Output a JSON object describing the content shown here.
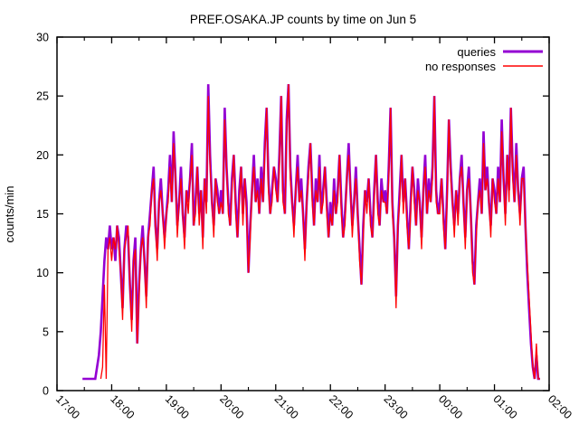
{
  "page": {
    "background_color": "#ffffff",
    "text_color": "#000000",
    "axis_color": "#000000"
  },
  "chart_data": {
    "type": "line",
    "title": "PREF.OSAKA.JP counts by time on Jun 5",
    "xlabel": "",
    "ylabel": "counts/min",
    "ylim": [
      0,
      30
    ],
    "y_tick_step": 5,
    "y_tick_labels": [
      "0",
      "5",
      "10",
      "15",
      "20",
      "25",
      "30"
    ],
    "x_tick_labels": [
      "17:00",
      "18:00",
      "19:00",
      "20:00",
      "21:00",
      "22:00",
      "23:00",
      "00:00",
      "01:00",
      "02:00"
    ],
    "x_minor_tick_every_minutes": 30,
    "x_tick_rotation_deg": 45,
    "grid": false,
    "legend_position": "top-right-inside",
    "x_start_time": "17:28",
    "x_step_minutes": 2,
    "series": [
      {
        "name": "queries",
        "color": "#9400d3",
        "line_width": 2.6,
        "values": [
          1,
          1,
          1,
          1,
          1,
          1,
          1,
          1,
          2,
          3,
          5,
          8,
          11,
          13,
          12,
          14,
          12,
          13,
          11,
          14,
          13,
          10,
          7,
          12,
          14,
          13,
          9,
          6,
          11,
          13,
          4,
          9,
          12,
          14,
          11,
          8,
          13,
          15,
          17,
          19,
          14,
          12,
          16,
          18,
          15,
          13,
          15,
          17,
          20,
          16,
          22,
          18,
          14,
          16,
          19,
          15,
          13,
          17,
          16,
          18,
          21,
          14,
          16,
          19,
          15,
          17,
          13,
          18,
          16,
          26,
          20,
          16,
          14,
          18,
          17,
          15,
          17,
          15,
          24,
          19,
          16,
          14,
          18,
          20,
          16,
          13,
          17,
          19,
          15,
          18,
          16,
          10,
          14,
          17,
          20,
          16,
          18,
          15,
          19,
          16,
          21,
          24,
          18,
          15,
          17,
          19,
          18,
          16,
          20,
          25,
          17,
          15,
          23,
          26,
          19,
          16,
          14,
          17,
          20,
          16,
          18,
          15,
          12,
          16,
          19,
          21,
          17,
          14,
          18,
          16,
          20,
          15,
          17,
          19,
          16,
          13,
          16,
          14,
          18,
          15,
          17,
          20,
          16,
          13,
          15,
          18,
          21,
          17,
          14,
          16,
          19,
          15,
          12,
          9,
          14,
          17,
          16,
          18,
          15,
          13,
          17,
          20,
          16,
          14,
          18,
          16,
          17,
          15,
          19,
          24,
          16,
          13,
          8,
          14,
          17,
          20,
          16,
          18,
          15,
          12,
          16,
          19,
          17,
          14,
          18,
          16,
          13,
          17,
          20,
          15,
          18,
          16,
          19,
          25,
          17,
          15,
          16,
          18,
          15,
          12,
          17,
          23,
          19,
          16,
          14,
          17,
          15,
          18,
          20,
          16,
          13,
          17,
          19,
          15,
          11,
          9,
          14,
          16,
          18,
          15,
          22,
          17,
          19,
          16,
          14,
          18,
          17,
          15,
          19,
          16,
          23,
          18,
          15,
          20,
          17,
          24,
          19,
          16,
          21,
          17,
          15,
          18,
          19,
          14,
          10,
          7,
          4,
          2,
          1,
          3,
          1,
          1
        ]
      },
      {
        "name": "no responses",
        "color": "#ff0000",
        "line_width": 1.3,
        "values": [
          null,
          null,
          null,
          null,
          null,
          null,
          null,
          null,
          null,
          null,
          1,
          2,
          9,
          1,
          12,
          13,
          11,
          13,
          12,
          14,
          12,
          10,
          6,
          12,
          13,
          14,
          9,
          5,
          11,
          12,
          4,
          8,
          12,
          13,
          11,
          7,
          13,
          14,
          17,
          18,
          14,
          11,
          16,
          17,
          15,
          12,
          15,
          16,
          19,
          16,
          21,
          18,
          13,
          16,
          18,
          15,
          12,
          17,
          15,
          18,
          20,
          14,
          15,
          19,
          14,
          17,
          12,
          18,
          15,
          25,
          19,
          16,
          13,
          18,
          16,
          15,
          16,
          15,
          23,
          19,
          15,
          14,
          17,
          20,
          15,
          13,
          16,
          19,
          14,
          18,
          15,
          10,
          13,
          17,
          19,
          16,
          17,
          15,
          18,
          16,
          20,
          24,
          17,
          15,
          16,
          19,
          17,
          16,
          19,
          25,
          16,
          15,
          22,
          26,
          18,
          16,
          13,
          17,
          19,
          16,
          17,
          15,
          11,
          16,
          18,
          21,
          16,
          14,
          17,
          16,
          19,
          15,
          16,
          19,
          15,
          13,
          15,
          14,
          17,
          15,
          16,
          20,
          15,
          13,
          14,
          18,
          20,
          17,
          13,
          16,
          18,
          15,
          11,
          9,
          13,
          17,
          15,
          18,
          14,
          13,
          16,
          20,
          15,
          14,
          17,
          16,
          16,
          15,
          18,
          24,
          15,
          13,
          7,
          14,
          16,
          20,
          15,
          18,
          14,
          12,
          15,
          19,
          16,
          14,
          17,
          16,
          12,
          17,
          19,
          15,
          17,
          16,
          18,
          25,
          16,
          15,
          15,
          18,
          14,
          12,
          16,
          23,
          18,
          16,
          13,
          17,
          14,
          18,
          19,
          16,
          12,
          17,
          18,
          15,
          10,
          9,
          13,
          16,
          17,
          15,
          21,
          17,
          18,
          16,
          13,
          18,
          16,
          15,
          18,
          16,
          22,
          18,
          14,
          20,
          16,
          24,
          18,
          16,
          20,
          17,
          14,
          18,
          18,
          14,
          11,
          8,
          5,
          2,
          1,
          4,
          1,
          1
        ]
      }
    ]
  }
}
